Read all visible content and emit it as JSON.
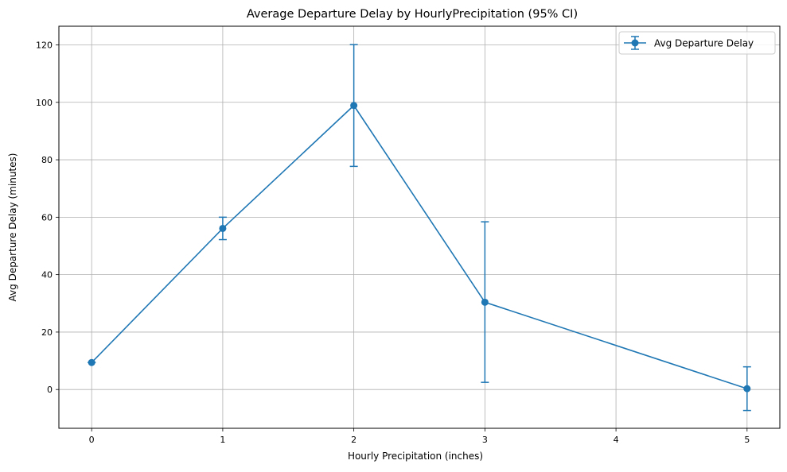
{
  "chart_data": {
    "type": "line",
    "title": "Average Departure Delay by HourlyPrecipitation (95% CI)",
    "xlabel": "Hourly Precipitation (inches)",
    "ylabel": "Avg Departure Delay (minutes)",
    "xlim": [
      -0.25,
      5.25
    ],
    "ylim": [
      -13.5,
      126.5
    ],
    "x_ticks": [
      0,
      1,
      2,
      3,
      4,
      5
    ],
    "x_tick_labels": [
      "0",
      "1",
      "2",
      "3",
      "4",
      "5"
    ],
    "y_ticks": [
      0,
      20,
      40,
      60,
      80,
      100,
      120
    ],
    "y_tick_labels": [
      "0",
      "20",
      "40",
      "60",
      "80",
      "100",
      "120"
    ],
    "grid": true,
    "legend_position": "top-right",
    "series": [
      {
        "name": "Avg Departure Delay",
        "color": "#1f77b4",
        "marker": "circle",
        "error_bars": "95% CI",
        "points": [
          {
            "x": 0,
            "y": 9.4,
            "y_low": 9.4,
            "y_high": 9.4
          },
          {
            "x": 1,
            "y": 56.1,
            "y_low": 52.2,
            "y_high": 60.0
          },
          {
            "x": 2,
            "y": 98.9,
            "y_low": 77.7,
            "y_high": 120.1
          },
          {
            "x": 3,
            "y": 30.4,
            "y_low": 2.5,
            "y_high": 58.4
          },
          {
            "x": 5,
            "y": 0.3,
            "y_low": -7.3,
            "y_high": 7.9
          }
        ]
      }
    ]
  }
}
